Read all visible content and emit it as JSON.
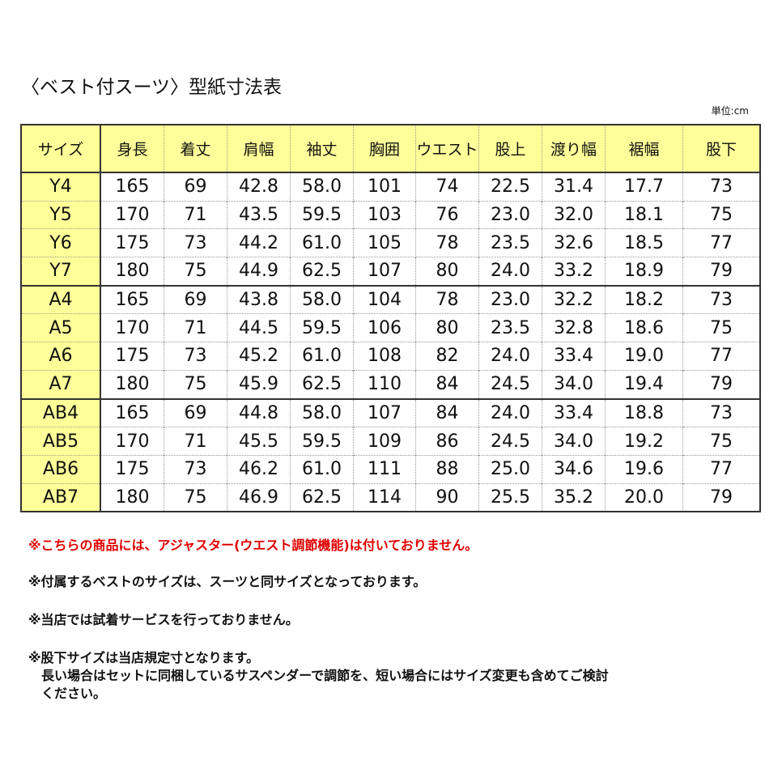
{
  "title": "〈ベスト付スーツ〉型紙寸法表",
  "unit": "単位:cm",
  "headers": [
    "サイズ",
    "身長",
    "着丈",
    "肩幅",
    "袖丈",
    "胸囲",
    "ウエスト",
    "股上",
    "渡り幅",
    "裾幅",
    "股下"
  ],
  "rows": [
    [
      "Y4",
      "165",
      "69",
      "42.8",
      "58.0",
      "101",
      "74",
      "22.5",
      "31.4",
      "17.7",
      "73"
    ],
    [
      "Y5",
      "170",
      "71",
      "43.5",
      "59.5",
      "103",
      "76",
      "23.0",
      "32.0",
      "18.1",
      "75"
    ],
    [
      "Y6",
      "175",
      "73",
      "44.2",
      "61.0",
      "105",
      "78",
      "23.5",
      "32.6",
      "18.5",
      "77"
    ],
    [
      "Y7",
      "180",
      "75",
      "44.9",
      "62.5",
      "107",
      "80",
      "24.0",
      "33.2",
      "18.9",
      "79"
    ],
    [
      "A4",
      "165",
      "69",
      "43.8",
      "58.0",
      "104",
      "78",
      "23.0",
      "32.2",
      "18.2",
      "73"
    ],
    [
      "A5",
      "170",
      "71",
      "44.5",
      "59.5",
      "106",
      "80",
      "23.5",
      "32.8",
      "18.6",
      "75"
    ],
    [
      "A6",
      "175",
      "73",
      "45.2",
      "61.0",
      "108",
      "82",
      "24.0",
      "33.4",
      "19.0",
      "77"
    ],
    [
      "A7",
      "180",
      "75",
      "45.9",
      "62.5",
      "110",
      "84",
      "24.5",
      "34.0",
      "19.4",
      "79"
    ],
    [
      "AB4",
      "165",
      "69",
      "44.8",
      "58.0",
      "107",
      "84",
      "24.0",
      "33.4",
      "18.8",
      "73"
    ],
    [
      "AB5",
      "170",
      "71",
      "45.5",
      "59.5",
      "109",
      "86",
      "24.5",
      "34.0",
      "19.2",
      "75"
    ],
    [
      "AB6",
      "175",
      "73",
      "46.2",
      "61.0",
      "111",
      "88",
      "25.0",
      "34.6",
      "19.6",
      "77"
    ],
    [
      "AB7",
      "180",
      "75",
      "46.9",
      "62.5",
      "114",
      "90",
      "25.5",
      "35.2",
      "20.0",
      "79"
    ]
  ],
  "notes": [
    "※こちらの商品には、アジャスター(ウエスト調節機能)は付いておりません。",
    "※付属するベストのサイズは、スーツと同サイズとなっております。",
    "※当店では試着サービスを行っておりません。",
    "※股下サイズは当店規定寸となります。\n　長い場合はセットに同梱しているサスペンダーで調節を、短い場合にはサイズ変更も含めてご検討\n　ください。"
  ],
  "colors": {
    "header_bg": "#ffff99",
    "warning": "#e00000"
  }
}
